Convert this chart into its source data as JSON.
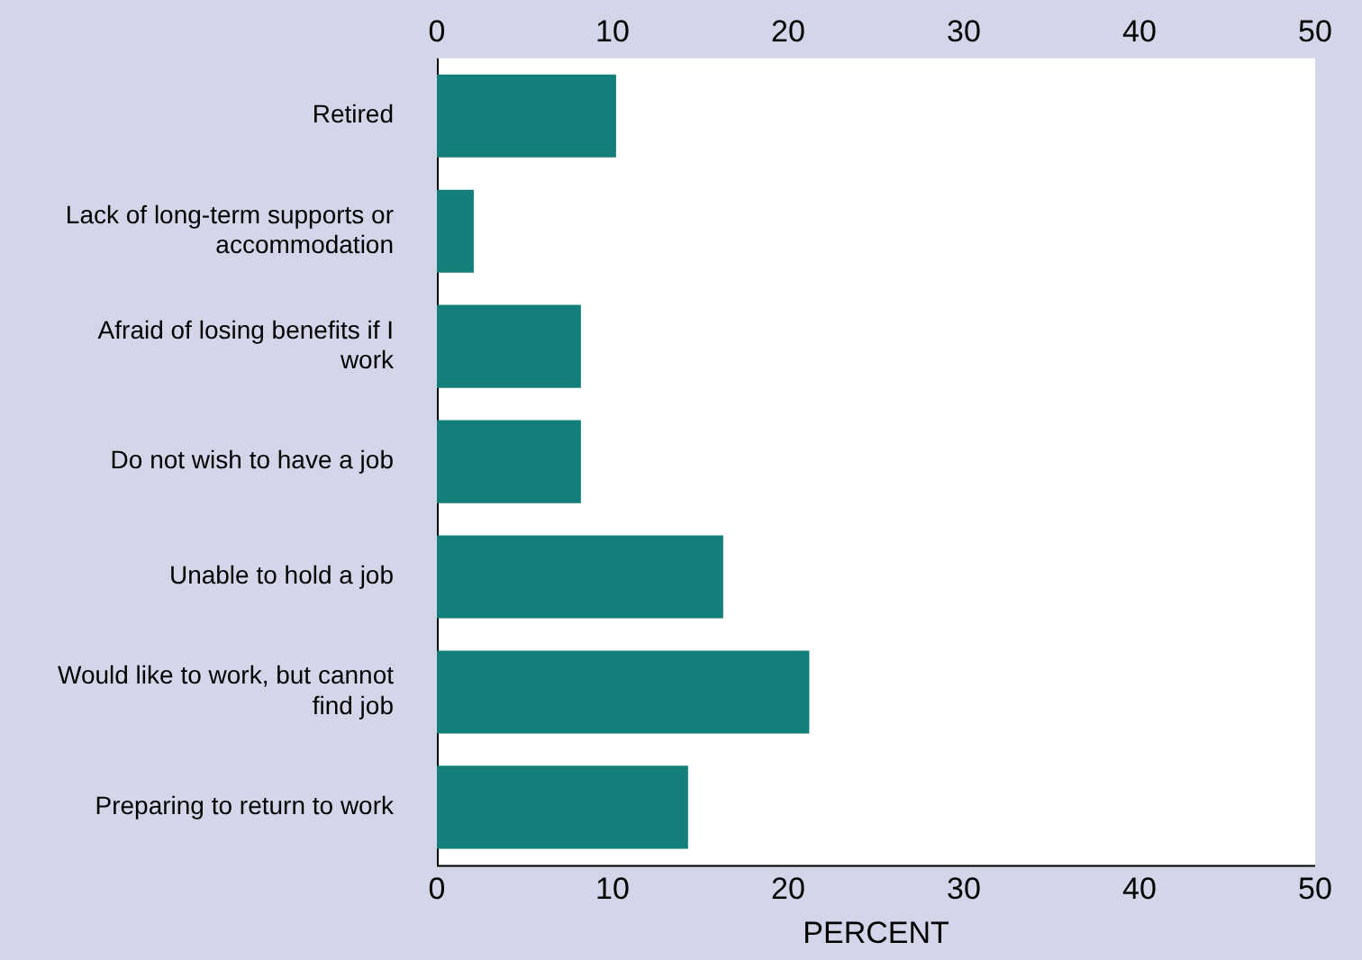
{
  "chart_data": {
    "type": "bar",
    "orientation": "horizontal",
    "xlabel": "PERCENT",
    "categories": [
      "Retired",
      "Lack of long-term supports or accommodation",
      "Afraid of losing benefits if I work",
      "Do not wish to have a job",
      "Unable to hold a job",
      "Would like to work, but cannot find job",
      "Preparing to return to work"
    ],
    "values": [
      10.2,
      2.1,
      8.2,
      8.2,
      16.3,
      21.2,
      14.3
    ],
    "color": "#137f7a",
    "xlim": [
      0,
      50
    ],
    "xticks": [
      0,
      10,
      20,
      30,
      40,
      50
    ],
    "x2lim": [
      0,
      50
    ],
    "x2ticks": [
      0,
      10,
      20,
      30,
      40,
      50
    ],
    "grid": false,
    "legend": false
  }
}
